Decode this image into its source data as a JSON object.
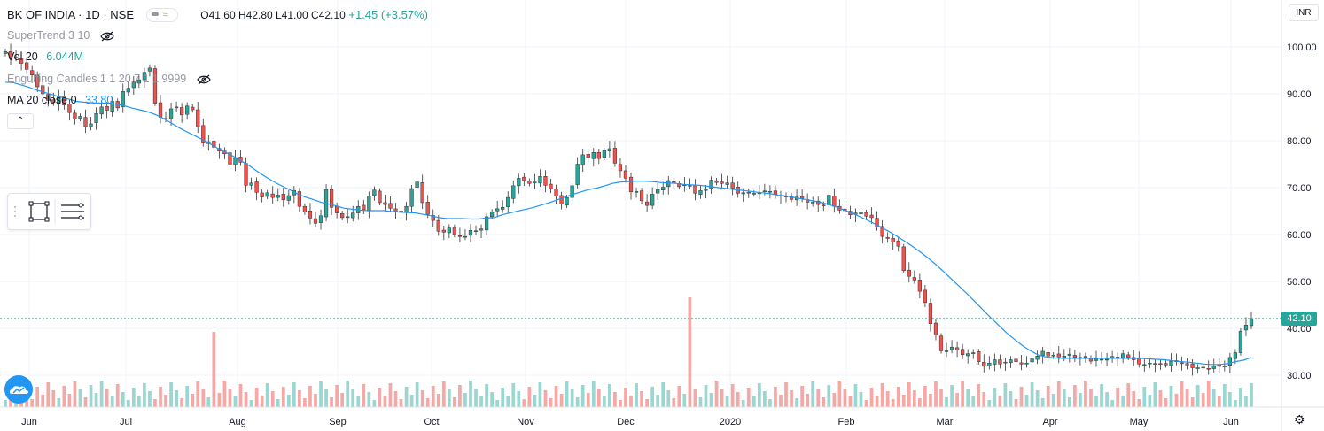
{
  "header": {
    "symbol": "BK OF INDIA · 1D · NSE",
    "ohlc": "O41.60 H42.80 L41.00 C42.10",
    "change": "+1.45 (+3.57%)"
  },
  "indicators": [
    {
      "name": "SuperTrend 3 10",
      "value": "",
      "hidden": true
    },
    {
      "name": "Vol 20",
      "value": "6.044M",
      "value_color": "#26a69a"
    },
    {
      "name": "Engulfing Candles 1 1 20 7 1 1 9999",
      "value": "",
      "hidden": true
    },
    {
      "name": "MA 20 close 0",
      "value": "33.80",
      "value_color": "#2196f3"
    }
  ],
  "price_axis": {
    "currency": "INR",
    "last_price": "42.10",
    "ticks": [
      "100.00",
      "90.00",
      "80.00",
      "70.00",
      "60.00",
      "50.00",
      "40.00",
      "30.00"
    ]
  },
  "icons": {
    "collapse": "chevron-up-icon",
    "eye": "eye-off-icon",
    "settings": "gear-icon",
    "logo": "tradingview-cloud-icon",
    "drawing": "rectangle-tool-icon",
    "lines": "horizontal-lines-icon"
  },
  "colors": {
    "up": "#26a69a",
    "down": "#ef5350",
    "ma": "#2196f3",
    "vol_up": "#9bd6d0",
    "vol_down": "#f4a9a7"
  },
  "chart_data": {
    "type": "candlestick",
    "x_labels": [
      "Jun",
      "Jul",
      "Aug",
      "Sep",
      "Oct",
      "Nov",
      "Dec",
      "2020",
      "Feb",
      "Mar",
      "Apr",
      "May",
      "Jun"
    ],
    "ylim": [
      25,
      105
    ],
    "y_ticks": [
      100,
      90,
      80,
      70,
      60,
      50,
      40,
      30
    ],
    "last_close": 42.1,
    "close_series": [
      99.0,
      97.5,
      97.8,
      96.5,
      95.2,
      94.0,
      91.5,
      90.0,
      88.6,
      88.2,
      89.5,
      87.6,
      86.0,
      84.6,
      85.2,
      83.0,
      83.6,
      85.8,
      87.2,
      86.5,
      88.4,
      87.0,
      90.5,
      91.2,
      92.5,
      93.0,
      94.6,
      95.5,
      88.0,
      85.0,
      84.7,
      86.8,
      87.2,
      85.5,
      87.4,
      86.6,
      83.0,
      79.5,
      79.8,
      78.6,
      77.8,
      77.2,
      75.0,
      76.4,
      75.4,
      70.5,
      71.0,
      69.0,
      68.0,
      68.9,
      67.9,
      68.4,
      67.4,
      68.3,
      69.4,
      66.0,
      64.8,
      63.5,
      62.4,
      64.0,
      69.6,
      65.8,
      64.6,
      63.6,
      63.8,
      64.6,
      66.0,
      65.3,
      68.2,
      69.5,
      66.8,
      66.4,
      65.6,
      64.9,
      64.9,
      66.0,
      69.8,
      71.2,
      66.8,
      64.3,
      63.0,
      60.7,
      60.5,
      61.4,
      60.0,
      59.6,
      59.6,
      60.9,
      60.8,
      61.2,
      63.8,
      64.8,
      65.5,
      65.8,
      67.9,
      70.4,
      72.0,
      71.5,
      70.9,
      71.2,
      72.4,
      70.5,
      69.8,
      68.2,
      66.5,
      67.9,
      70.4,
      75.0,
      77.0,
      76.4,
      77.5,
      76.2,
      77.9,
      78.3,
      75.2,
      73.6,
      72.0,
      69.1,
      69.2,
      67.2,
      66.2,
      68.6,
      69.6,
      70.1,
      71.5,
      70.9,
      70.2,
      70.6,
      70.4,
      68.8,
      69.4,
      69.6,
      71.6,
      71.1,
      70.9,
      71.0,
      69.9,
      68.8,
      68.9,
      68.9,
      68.8,
      68.9,
      69.3,
      69.2,
      68.6,
      68.2,
      68.0,
      67.5,
      68.0,
      67.7,
      66.9,
      66.9,
      66.4,
      66.2,
      68.4,
      66.0,
      65.2,
      65.1,
      64.2,
      64.6,
      64.7,
      63.9,
      63.6,
      61.6,
      59.6,
      59.2,
      58.4,
      57.5,
      52.3,
      51.1,
      50.3,
      47.9,
      45.5,
      41.0,
      38.6,
      35.2,
      35.2,
      36.0,
      35.4,
      34.4,
      34.6,
      34.8,
      32.9,
      31.9,
      32.6,
      33.3,
      32.4,
      32.8,
      33.3,
      32.9,
      32.4,
      32.6,
      33.5,
      34.1,
      35.1,
      34.1,
      34.3,
      33.9,
      34.1,
      34.5,
      33.8,
      33.8,
      33.8,
      33.0,
      33.5,
      33.4,
      33.4,
      34.0,
      33.6,
      34.6,
      33.8,
      33.3,
      32.4,
      32.3,
      32.6,
      32.5,
      32.3,
      32.2,
      33.0,
      32.9,
      32.5,
      32.2,
      31.6,
      31.6,
      31.7,
      31.4,
      32.0,
      31.9,
      32.0,
      33.8,
      34.8,
      39.4,
      40.7,
      42.1
    ],
    "ma_20": [
      92.5,
      92.4,
      91.9,
      91.4,
      90.8,
      90.3,
      89.8,
      89.3,
      88.9,
      88.4,
      88.2,
      88.1,
      88.0,
      88.0,
      87.8,
      87.5,
      87.0,
      86.6,
      86.2,
      85.6,
      84.8,
      83.8,
      82.8,
      81.9,
      81.1,
      80.2,
      79.3,
      78.3,
      77.5,
      76.6,
      75.6,
      74.6,
      73.4,
      72.3,
      71.3,
      70.4,
      69.6,
      68.7,
      68.0,
      67.5,
      66.9,
      66.5,
      66.1,
      65.6,
      65.4,
      65.2,
      65.1,
      65.1,
      65.1,
      64.9,
      64.8,
      64.7,
      64.6,
      64.3,
      64.0,
      63.6,
      63.4,
      63.4,
      63.4,
      63.3,
      63.3,
      63.5,
      63.6,
      64.2,
      64.6,
      65.0,
      65.4,
      65.8,
      66.3,
      66.8,
      67.4,
      68.0,
      68.6,
      69.1,
      69.6,
      69.9,
      70.4,
      70.9,
      71.2,
      71.3,
      71.4,
      71.4,
      71.3,
      71.1,
      71.0,
      70.9,
      70.7,
      70.6,
      70.5,
      70.3,
      70.1,
      69.9,
      69.7,
      69.5,
      69.3,
      69.1,
      68.9,
      68.7,
      68.4,
      68.2,
      67.9,
      67.6,
      67.3,
      67.0,
      66.6,
      66.1,
      65.5,
      64.8,
      64.1,
      63.3,
      62.5,
      61.6,
      60.7,
      59.7,
      58.6,
      57.5,
      56.3,
      55.0,
      53.6,
      52.1,
      50.5,
      48.9,
      47.3,
      45.6,
      43.9,
      42.2,
      40.6,
      39.0,
      37.6,
      36.3,
      35.2,
      34.3,
      33.9,
      33.7,
      33.6,
      33.6,
      33.6,
      33.6,
      33.6,
      33.6,
      33.6,
      33.6,
      33.6,
      33.6,
      33.6,
      33.5,
      33.4,
      33.3,
      33.1,
      32.9,
      32.8,
      32.6,
      32.4,
      32.3,
      32.3,
      32.5,
      32.9,
      33.2,
      33.8
    ]
  }
}
